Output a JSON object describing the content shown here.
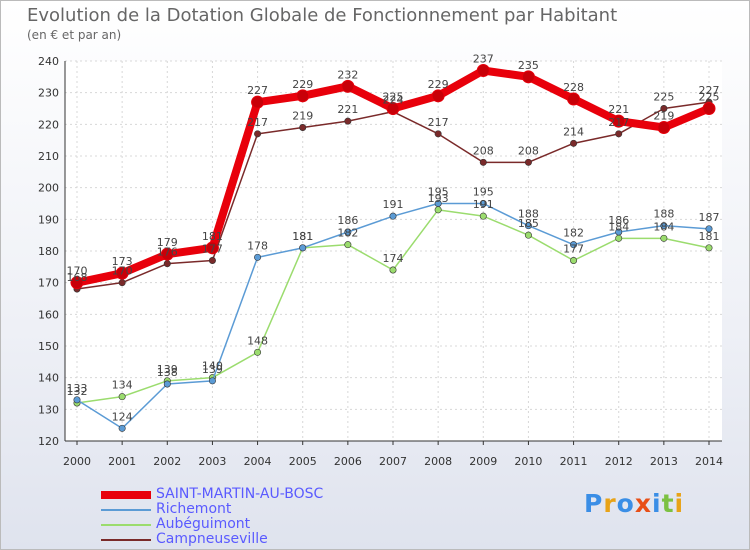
{
  "title": "Evolution de la Dotation Globale de Fonctionnement par Habitant",
  "subtitle": "(en € et par an)",
  "logo": {
    "text": "Proxiti",
    "colors": [
      "#3a8ee6",
      "#e8a317",
      "#3a8ee6",
      "#e84f17",
      "#3a8ee6",
      "#7cc142",
      "#e8a317"
    ]
  },
  "chart_data": {
    "type": "line",
    "x": [
      2000,
      2001,
      2002,
      2003,
      2004,
      2005,
      2006,
      2007,
      2008,
      2009,
      2010,
      2011,
      2012,
      2013,
      2014
    ],
    "ylim": [
      120,
      240
    ],
    "yticks": [
      120,
      130,
      140,
      150,
      160,
      170,
      180,
      190,
      200,
      210,
      220,
      230,
      240
    ],
    "grid": true,
    "legend_position": "bottom-left",
    "series": [
      {
        "name": "SAINT-MARTIN-AU-BOSC",
        "color": "#e8000b",
        "values": [
          170,
          173,
          179,
          181,
          227,
          229,
          232,
          225,
          229,
          237,
          235,
          228,
          221,
          219,
          225
        ]
      },
      {
        "name": "Richemont",
        "color": "#5b9bd5",
        "values": [
          133,
          124,
          138,
          139,
          178,
          181,
          186,
          191,
          195,
          195,
          188,
          182,
          186,
          188,
          187
        ]
      },
      {
        "name": "Aubéguimont",
        "color": "#9bdc6e",
        "values": [
          132,
          134,
          139,
          140,
          148,
          181,
          182,
          174,
          193,
          191,
          185,
          177,
          184,
          184,
          181
        ]
      },
      {
        "name": "Campneuseville",
        "color": "#7a2a2a",
        "values": [
          168,
          170,
          176,
          177,
          217,
          219,
          221,
          224,
          217,
          208,
          208,
          214,
          217,
          225,
          227
        ]
      }
    ]
  }
}
